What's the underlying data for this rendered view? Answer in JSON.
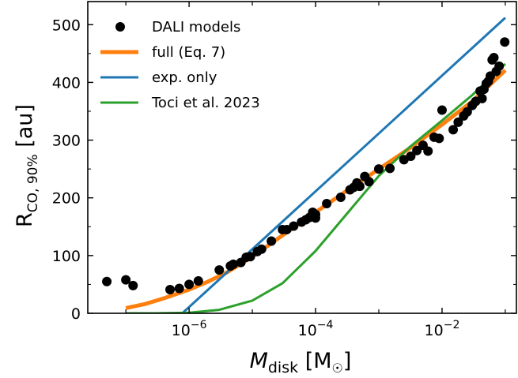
{
  "chart_data": {
    "type": "scatter",
    "title": "",
    "xlabel": {
      "main": "M",
      "sub": "disk",
      "unit": " [M",
      "unit_sub": "☉",
      "close": "]"
    },
    "ylabel": {
      "main": "R",
      "sub": "CO, 90%",
      "unit": " [au]"
    },
    "xscale": "log",
    "xlim": [
      2.5e-08,
      0.15
    ],
    "ylim": [
      0,
      540
    ],
    "x_ticks": [
      {
        "value": 1e-06,
        "base": "10",
        "exp": "−6"
      },
      {
        "value": 0.0001,
        "base": "10",
        "exp": "−4"
      },
      {
        "value": 0.01,
        "base": "10",
        "exp": "−2"
      }
    ],
    "y_ticks": [
      0,
      100,
      200,
      300,
      400,
      500
    ],
    "grid": false,
    "legend_position": "top-left",
    "series": [
      {
        "name": "DALI models",
        "kind": "scatter",
        "color": "#000000",
        "points": [
          [
            5e-08,
            55
          ],
          [
            1e-07,
            58
          ],
          [
            1.3e-07,
            48
          ],
          [
            5e-07,
            41
          ],
          [
            7e-07,
            43
          ],
          [
            1e-06,
            50
          ],
          [
            1.4e-06,
            56
          ],
          [
            3e-06,
            75
          ],
          [
            4.5e-06,
            82
          ],
          [
            5e-06,
            85
          ],
          [
            6.6e-06,
            88
          ],
          [
            8e-06,
            97
          ],
          [
            9.3e-06,
            98
          ],
          [
            1.2e-05,
            107
          ],
          [
            1.4e-05,
            111
          ],
          [
            2e-05,
            125
          ],
          [
            3e-05,
            145
          ],
          [
            3.5e-05,
            145
          ],
          [
            4.5e-05,
            151
          ],
          [
            6e-05,
            158
          ],
          [
            7e-05,
            162
          ],
          [
            8e-05,
            166
          ],
          [
            9e-05,
            175
          ],
          [
            0.0001,
            165
          ],
          [
            0.0001,
            171
          ],
          [
            0.00015,
            190
          ],
          [
            0.00025,
            201
          ],
          [
            0.00035,
            214
          ],
          [
            0.0004,
            218
          ],
          [
            0.00045,
            226
          ],
          [
            0.0005,
            220
          ],
          [
            0.0006,
            237
          ],
          [
            0.0007,
            228
          ],
          [
            0.001,
            250
          ],
          [
            0.0015,
            251
          ],
          [
            0.0025,
            266
          ],
          [
            0.0032,
            272
          ],
          [
            0.004,
            282
          ],
          [
            0.005,
            291
          ],
          [
            0.006,
            281
          ],
          [
            0.0075,
            305
          ],
          [
            0.009,
            303
          ],
          [
            0.01,
            352
          ],
          [
            0.015,
            318
          ],
          [
            0.018,
            331
          ],
          [
            0.022,
            342
          ],
          [
            0.025,
            349
          ],
          [
            0.03,
            360
          ],
          [
            0.034,
            367
          ],
          [
            0.04,
            385
          ],
          [
            0.043,
            372
          ],
          [
            0.046,
            388
          ],
          [
            0.05,
            398
          ],
          [
            0.054,
            402
          ],
          [
            0.058,
            411
          ],
          [
            0.062,
            439
          ],
          [
            0.066,
            443
          ],
          [
            0.072,
            419
          ],
          [
            0.08,
            428
          ],
          [
            0.098,
            470
          ]
        ]
      },
      {
        "name": "full (Eq. 7)",
        "kind": "line",
        "color": "#ff7f0e",
        "points": [
          [
            1e-07,
            9
          ],
          [
            2e-07,
            16
          ],
          [
            4e-07,
            26
          ],
          [
            1e-06,
            41
          ],
          [
            2e-06,
            55
          ],
          [
            4e-06,
            71
          ],
          [
            1e-05,
            98
          ],
          [
            3e-05,
            135
          ],
          [
            0.0001,
            175
          ],
          [
            0.0003,
            211
          ],
          [
            0.001,
            250
          ],
          [
            0.003,
            285
          ],
          [
            0.01,
            327
          ],
          [
            0.03,
            367
          ],
          [
            0.1,
            421
          ]
        ]
      },
      {
        "name": "exp. only",
        "kind": "line",
        "color": "#1f77b4",
        "points": [
          [
            7.8e-07,
            0
          ],
          [
            0.1,
            512
          ]
        ]
      },
      {
        "name": "Toci et al. 2023",
        "kind": "line",
        "color": "#2ca02c",
        "points": [
          [
            1e-07,
            0
          ],
          [
            3e-07,
            0
          ],
          [
            1e-06,
            1
          ],
          [
            3e-06,
            6
          ],
          [
            1e-05,
            22
          ],
          [
            3e-05,
            52
          ],
          [
            0.0001,
            108
          ],
          [
            0.0003,
            170
          ],
          [
            0.001,
            238
          ],
          [
            0.003,
            287
          ],
          [
            0.01,
            334
          ],
          [
            0.03,
            378
          ],
          [
            0.1,
            432
          ]
        ]
      }
    ]
  }
}
